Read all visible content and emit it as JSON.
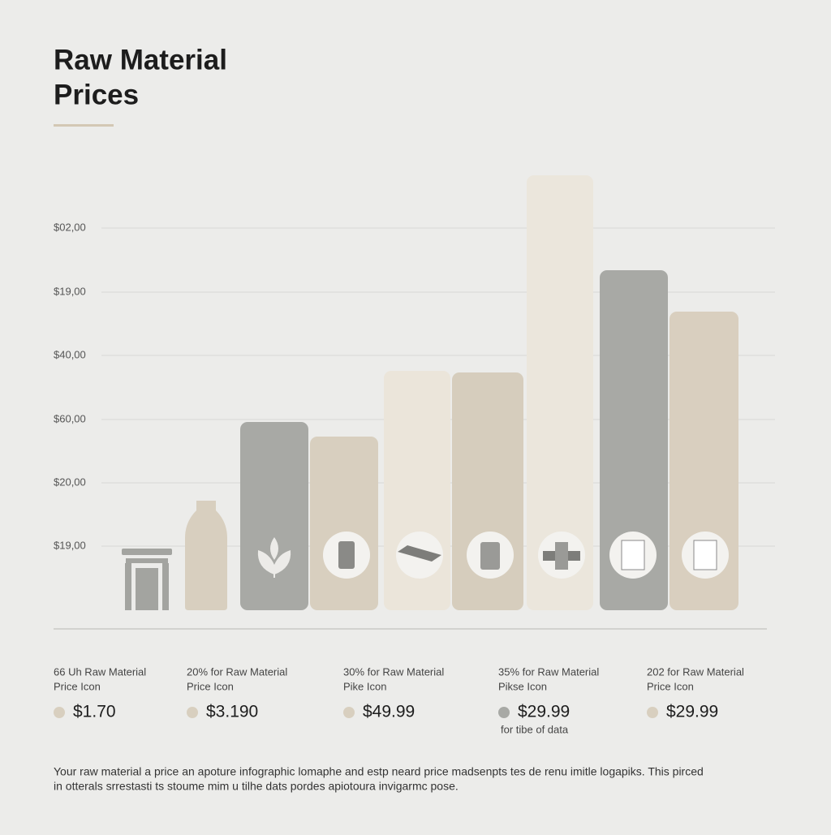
{
  "header": {
    "title_lines": [
      "Raw Material",
      "Prices"
    ]
  },
  "y_axis_labels": [
    "$02,00",
    "$19,00",
    "$40,00",
    "$60,00",
    "$20,00",
    "$19,00"
  ],
  "legend": [
    {
      "lines": [
        "66 Uh Raw Material",
        "Price Icon"
      ],
      "price": "$1.70",
      "color": "#d8cfbf"
    },
    {
      "lines": [
        "20% for Raw Material",
        "Price Icon"
      ],
      "price": "$3.190",
      "color": "#d8cfbf"
    },
    {
      "lines": [
        "30% for Raw Material",
        "Pike Icon"
      ],
      "price": "$49.99",
      "color": "#d8cfbf"
    },
    {
      "lines": [
        "35% for Raw Material",
        "Pikse Icon"
      ],
      "price": "$29.99",
      "color": "#a8a9a5",
      "note": "for tibe of data"
    },
    {
      "lines": [
        "202 for Raw Material",
        "Price Icon"
      ],
      "price": "$29.99",
      "color": "#d8cfbf"
    }
  ],
  "footer": [
    "Your raw material a price an apoture infographic lomaphe and estp neard price madsenpts tes de renu imitle logapiks.  This pirced",
    "in otterals srrestasti ts stoume mim u tilhe dats pordes apiotoura invigarmc pose."
  ]
}
